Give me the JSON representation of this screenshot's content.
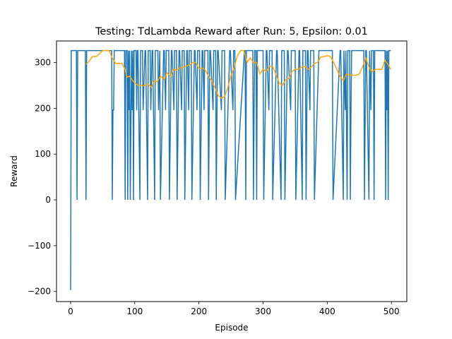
{
  "chart_data": {
    "type": "line",
    "title": "Testing: TdLambda Reward after Run: 5, Epsilon: 0.01",
    "xlabel": "Episode",
    "ylabel": "Reward",
    "xlim": [
      -22,
      524
    ],
    "ylim": [
      -222,
      347
    ],
    "xticks": [
      0,
      100,
      200,
      300,
      400,
      500
    ],
    "yticks": [
      -200,
      -100,
      0,
      100,
      200,
      300
    ],
    "xtick_labels": [
      "0",
      "100",
      "200",
      "300",
      "400",
      "500"
    ],
    "ytick_labels": [
      "−200",
      "−100",
      "0",
      "100",
      "200",
      "300"
    ],
    "grid": false,
    "colors": {
      "reward": "#1f77b4",
      "average": "#ffa500"
    },
    "series": [
      {
        "x": [
          0,
          1,
          2,
          9,
          10,
          11,
          12,
          23,
          24,
          25,
          26,
          64,
          65,
          66,
          67,
          68,
          84,
          85,
          86,
          88,
          89,
          90,
          91,
          92,
          93,
          95,
          96,
          97,
          98,
          99,
          102,
          103,
          104,
          105,
          108,
          109,
          112,
          113,
          116,
          117,
          120,
          121,
          124,
          125,
          127,
          128,
          131,
          132,
          136,
          137,
          139,
          140,
          145,
          146,
          148,
          149,
          153,
          154,
          157,
          158,
          161,
          162,
          165,
          166,
          169,
          170,
          173,
          174,
          177,
          178,
          181,
          182,
          184,
          185,
          188,
          189,
          193,
          194,
          197,
          198,
          201,
          202,
          205,
          206,
          208,
          209,
          214,
          215,
          217,
          218,
          222,
          223,
          226,
          227,
          229,
          230,
          235,
          236,
          240,
          241,
          248,
          249,
          253,
          254,
          256,
          257,
          271,
          272,
          273,
          274,
          284,
          285,
          286,
          287,
          289,
          290,
          291,
          292,
          300,
          301,
          305,
          306,
          309,
          310,
          314,
          315,
          321,
          322,
          328,
          329,
          333,
          334,
          338,
          339,
          343,
          344,
          350,
          351,
          356,
          357,
          361,
          362,
          366,
          367,
          369,
          370,
          373,
          374,
          379,
          380,
          387,
          388,
          408,
          409,
          420,
          421,
          425,
          426,
          428,
          429,
          431,
          432,
          435,
          436,
          437,
          438,
          457,
          458,
          460,
          461,
          465,
          466,
          468,
          469,
          472,
          473,
          474,
          475,
          490,
          491,
          492,
          493,
          494,
          495,
          496,
          497,
          499
        ],
        "y": [
          -197,
          326,
          326,
          326,
          0,
          326,
          326,
          326,
          0,
          326,
          326,
          326,
          0,
          196,
          196,
          326,
          326,
          0,
          326,
          326,
          0,
          326,
          196,
          326,
          0,
          326,
          196,
          326,
          0,
          326,
          326,
          196,
          326,
          326,
          0,
          326,
          326,
          196,
          326,
          326,
          0,
          326,
          326,
          196,
          326,
          326,
          0,
          326,
          326,
          196,
          326,
          0,
          326,
          326,
          196,
          326,
          326,
          0,
          326,
          326,
          196,
          326,
          326,
          0,
          326,
          326,
          196,
          326,
          326,
          0,
          326,
          326,
          196,
          326,
          326,
          0,
          326,
          326,
          196,
          326,
          326,
          0,
          326,
          326,
          196,
          326,
          326,
          0,
          326,
          326,
          196,
          326,
          326,
          0,
          326,
          326,
          196,
          326,
          326,
          0,
          326,
          326,
          196,
          326,
          326,
          0,
          326,
          326,
          0,
          326,
          326,
          0,
          196,
          326,
          326,
          0,
          326,
          326,
          326,
          0,
          326,
          326,
          196,
          326,
          326,
          0,
          326,
          326,
          0,
          326,
          326,
          0,
          326,
          326,
          196,
          326,
          326,
          0,
          326,
          326,
          0,
          326,
          326,
          0,
          326,
          326,
          196,
          326,
          326,
          0,
          326,
          326,
          326,
          0,
          326,
          326,
          0,
          326,
          196,
          326,
          0,
          326,
          326,
          0,
          196,
          326,
          326,
          0,
          326,
          326,
          0,
          326,
          196,
          326,
          326,
          0,
          326,
          326,
          326,
          0,
          326,
          196,
          326,
          0,
          326,
          326,
          326
        ]
      },
      {
        "x": [
          24,
          27,
          30,
          34,
          40,
          50,
          60,
          65,
          70,
          75,
          80,
          85,
          88,
          92,
          96,
          100,
          103,
          106,
          110,
          115,
          120,
          126,
          130,
          135,
          140,
          146,
          150,
          156,
          160,
          166,
          170,
          176,
          180,
          186,
          190,
          195,
          200,
          205,
          210,
          215,
          220,
          225,
          230,
          235,
          240,
          245,
          250,
          255,
          260,
          265,
          270,
          275,
          280,
          285,
          290,
          295,
          300,
          305,
          310,
          315,
          320,
          325,
          330,
          335,
          340,
          345,
          350,
          355,
          360,
          365,
          370,
          375,
          380,
          385,
          390,
          395,
          400,
          405,
          410,
          415,
          420,
          425,
          430,
          435,
          440,
          445,
          450,
          455,
          460,
          465,
          470,
          475,
          480,
          485,
          490,
          495,
          499
        ],
        "y": [
          296,
          300,
          305,
          313,
          313,
          326,
          326,
          310,
          298,
          298,
          298,
          285,
          268,
          270,
          262,
          255,
          252,
          250,
          250,
          249,
          253,
          246,
          260,
          258,
          270,
          263,
          278,
          270,
          285,
          283,
          288,
          290,
          292,
          295,
          300,
          300,
          287,
          288,
          283,
          270,
          260,
          245,
          228,
          222,
          225,
          245,
          272,
          290,
          315,
          326,
          326,
          300,
          310,
          300,
          300,
          275,
          285,
          280,
          292,
          290,
          275,
          255,
          250,
          262,
          265,
          280,
          285,
          285,
          290,
          292,
          285,
          290,
          298,
          300,
          312,
          313,
          315,
          313,
          300,
          285,
          270,
          260,
          275,
          273,
          272,
          272,
          275,
          290,
          310,
          290,
          280,
          285,
          285,
          285,
          305,
          295,
          285
        ]
      }
    ]
  }
}
